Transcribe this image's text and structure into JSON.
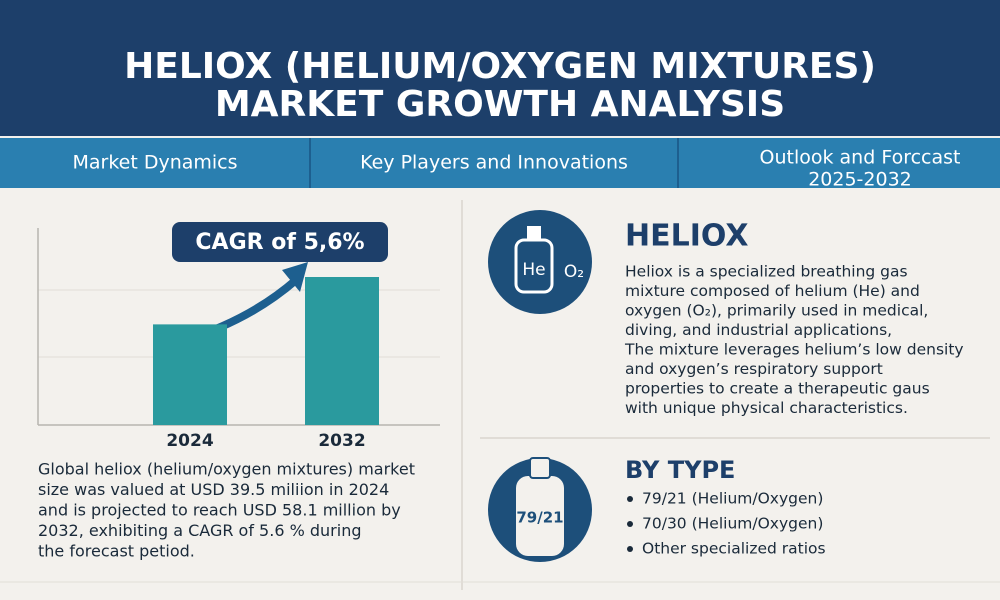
{
  "header": {
    "title_lines": [
      "HELIOX (HELIUM/OXYGEN MIXTURES)",
      "MARKET GROWTH ANALYSIS"
    ]
  },
  "tabs": [
    [
      "Market Dynamics"
    ],
    [
      "Key Players and Innovations"
    ],
    [
      "Outlook and Forccast",
      "2025-2032"
    ]
  ],
  "chart_data": {
    "type": "bar",
    "categories": [
      "2024",
      "2032"
    ],
    "values": [
      39.5,
      58.1
    ],
    "color": "#2a9a9e",
    "annotation": "CAGR of 5,6%"
  },
  "summary_lines": [
    "Global heliox (helium/oxygen mixtures) market",
    "size was valued at USD 39.5 miliion in 2024",
    "and is projected to reach USD 58.1 million by",
    "2032, exhibiting a CAGR of 5.6 % during",
    "the forecast petiod."
  ],
  "heliox": {
    "icon_labels": [
      "He",
      "O₂"
    ],
    "heading": "HELIOX",
    "lines": [
      "Heliox is a specialized breathing gas",
      "mixture composed of helium (He) and",
      "oxygen (O₂), primarily used in medical,",
      "diving, and industrial applications,",
      "The mixture leverages helium’s low density",
      "and oxygen’s respiratory support",
      "properties to create a therapeutic gaus",
      "with unique physical characteristics."
    ]
  },
  "by_type": {
    "icon_label": "79/21",
    "heading": "BY TYPE",
    "items": [
      "79/21 (Helium/Oxygen)",
      "70/30 (Helium/Oxygen)",
      "Other specialized ratios"
    ]
  }
}
